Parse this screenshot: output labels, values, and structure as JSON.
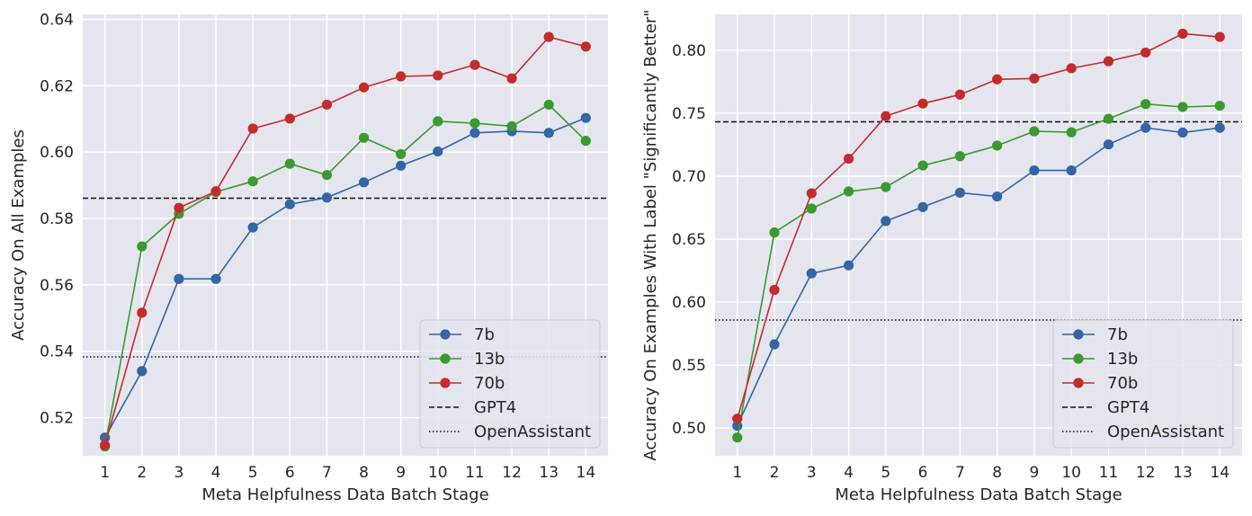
{
  "chart_data": [
    {
      "type": "line",
      "xlabel": "Meta Helpfulness Data Batch Stage",
      "ylabel": "Accuracy On All Examples",
      "x": [
        1,
        2,
        3,
        4,
        5,
        6,
        7,
        8,
        9,
        10,
        11,
        12,
        13,
        14
      ],
      "x_tick_labels": [
        "1",
        "2",
        "3",
        "4",
        "5",
        "6",
        "7",
        "8",
        "9",
        "10",
        "11",
        "12",
        "13",
        "14"
      ],
      "xlim": [
        0.4,
        14.6
      ],
      "ylim": [
        0.5085,
        0.6415
      ],
      "y_ticks": [
        0.52,
        0.54,
        0.56,
        0.58,
        0.6,
        0.62,
        0.64
      ],
      "y_tick_labels": [
        "0.52",
        "0.54",
        "0.56",
        "0.58",
        "0.60",
        "0.62",
        "0.64"
      ],
      "grid": true,
      "legend_position": "bottom-right",
      "series": [
        {
          "name": "7b",
          "color": "#3465a4",
          "values": [
            0.514,
            0.534,
            0.5618,
            0.5618,
            0.5773,
            0.5843,
            0.5863,
            0.5909,
            0.5959,
            0.6002,
            0.6058,
            0.6063,
            0.6058,
            0.6103
          ]
        },
        {
          "name": "13b",
          "color": "#3a9a2e",
          "values": [
            0.5113,
            0.5716,
            0.5814,
            0.588,
            0.5912,
            0.5965,
            0.5931,
            0.6043,
            0.5994,
            0.6093,
            0.6087,
            0.6078,
            0.6143,
            0.6034
          ]
        },
        {
          "name": "70b",
          "color": "#c42b2b",
          "values": [
            0.5117,
            0.5516,
            0.5832,
            0.5882,
            0.6071,
            0.6101,
            0.6143,
            0.6195,
            0.6228,
            0.6231,
            0.6263,
            0.6222,
            0.6347,
            0.6318
          ]
        }
      ],
      "reference_lines": [
        {
          "name": "GPT4",
          "style": "dashed",
          "value": 0.5861
        },
        {
          "name": "OpenAssistant",
          "style": "dotted",
          "value": 0.5383
        }
      ]
    },
    {
      "type": "line",
      "xlabel": "Meta Helpfulness Data Batch Stage",
      "ylabel": "Accuracy On Examples With Label \"Significantly Better\"",
      "x": [
        1,
        2,
        3,
        4,
        5,
        6,
        7,
        8,
        9,
        10,
        11,
        12,
        13,
        14
      ],
      "x_tick_labels": [
        "1",
        "2",
        "3",
        "4",
        "5",
        "6",
        "7",
        "8",
        "9",
        "10",
        "11",
        "12",
        "13",
        "14"
      ],
      "xlim": [
        0.4,
        14.6
      ],
      "ylim": [
        0.478,
        0.8285
      ],
      "y_ticks": [
        0.5,
        0.55,
        0.6,
        0.65,
        0.7,
        0.75,
        0.8
      ],
      "y_tick_labels": [
        "0.50",
        "0.55",
        "0.60",
        "0.65",
        "0.70",
        "0.75",
        "0.80"
      ],
      "grid": true,
      "legend_position": "bottom-right",
      "series": [
        {
          "name": "7b",
          "color": "#3465a4",
          "values": [
            0.5018,
            0.5665,
            0.6228,
            0.6292,
            0.6644,
            0.6755,
            0.6869,
            0.6839,
            0.7046,
            0.7046,
            0.7252,
            0.7384,
            0.7347,
            0.7384
          ]
        },
        {
          "name": "13b",
          "color": "#3a9a2e",
          "values": [
            0.4925,
            0.6553,
            0.6743,
            0.6879,
            0.6914,
            0.7085,
            0.7159,
            0.7243,
            0.7356,
            0.7349,
            0.7456,
            0.7573,
            0.755,
            0.7559
          ]
        },
        {
          "name": "70b",
          "color": "#c42b2b",
          "values": [
            0.5075,
            0.6097,
            0.6864,
            0.7139,
            0.7477,
            0.7577,
            0.7648,
            0.7769,
            0.7776,
            0.7857,
            0.7913,
            0.7982,
            0.8132,
            0.8106
          ]
        }
      ],
      "reference_lines": [
        {
          "name": "GPT4",
          "style": "dashed",
          "value": 0.7432
        },
        {
          "name": "OpenAssistant",
          "style": "dotted",
          "value": 0.5858
        }
      ]
    }
  ]
}
